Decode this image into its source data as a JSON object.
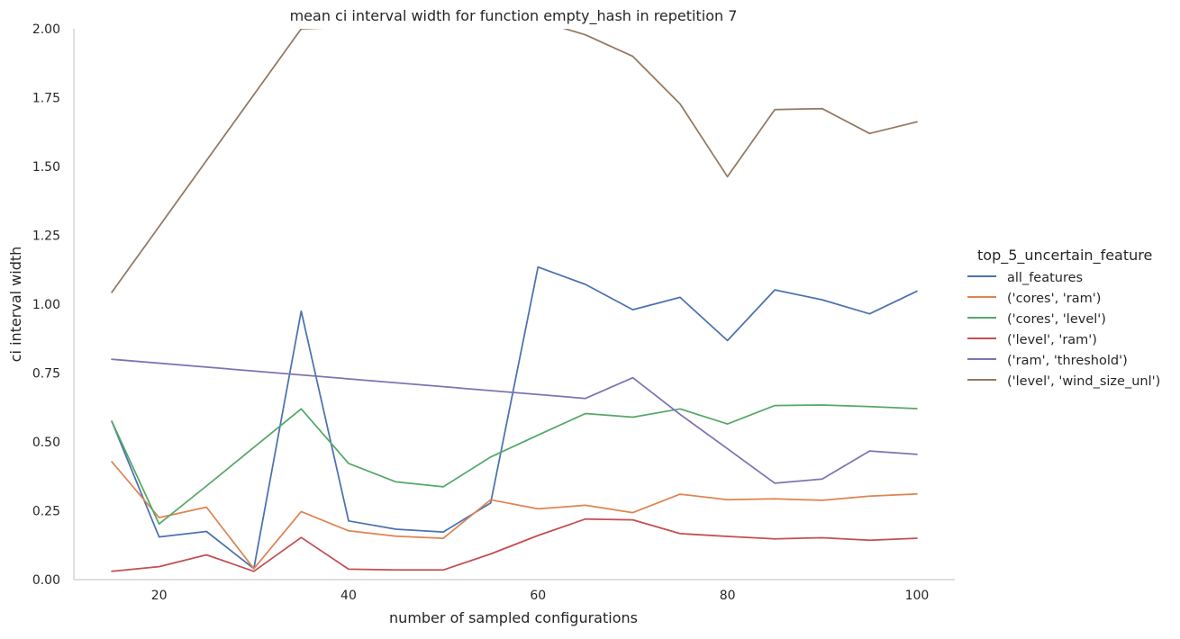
{
  "chart_data": {
    "type": "line",
    "title": "mean ci interval width for function empty_hash in repetition 7",
    "xlabel": "number of sampled configurations",
    "ylabel": "ci interval width",
    "xlim": [
      11,
      104
    ],
    "ylim": [
      0,
      2.0
    ],
    "x_ticks": [
      20,
      40,
      60,
      80,
      100
    ],
    "y_ticks": [
      0.0,
      0.25,
      0.5,
      0.75,
      1.0,
      1.25,
      1.5,
      1.75,
      2.0
    ],
    "x_tick_labels": [
      "20",
      "40",
      "60",
      "80",
      "100"
    ],
    "y_tick_labels": [
      "0.00",
      "0.25",
      "0.50",
      "0.75",
      "1.00",
      "1.25",
      "1.50",
      "1.75",
      "2.00"
    ],
    "grid": false,
    "legend_title": "top_5_uncertain_feature",
    "legend_position": "right",
    "series": [
      {
        "name": "all_features",
        "color": "#4c72b0",
        "x": [
          15,
          20,
          25,
          30,
          35,
          40,
          45,
          50,
          55,
          60,
          65,
          70,
          75,
          80,
          85,
          90,
          95,
          100
        ],
        "y": [
          0.575,
          0.155,
          0.175,
          0.04,
          0.975,
          0.213,
          0.183,
          0.173,
          0.278,
          1.135,
          1.072,
          0.98,
          1.025,
          0.868,
          1.052,
          1.016,
          0.965,
          1.047
        ]
      },
      {
        "name": "('cores', 'ram')",
        "color": "#dd8452",
        "x": [
          15,
          20,
          25,
          30,
          35,
          40,
          45,
          50,
          55,
          60,
          65,
          70,
          75,
          80,
          85,
          90,
          95,
          100
        ],
        "y": [
          0.428,
          0.225,
          0.263,
          0.04,
          0.247,
          0.177,
          0.158,
          0.15,
          0.29,
          0.257,
          0.27,
          0.243,
          0.31,
          0.29,
          0.293,
          0.288,
          0.303,
          0.311
        ]
      },
      {
        "name": "('cores', 'level')",
        "color": "#55a868",
        "x": [
          15,
          20,
          25,
          30,
          35,
          40,
          45,
          50,
          55,
          60,
          65,
          70,
          75,
          80,
          85,
          90,
          95,
          100
        ],
        "y": [
          0.575,
          0.202,
          0.34,
          0.48,
          0.62,
          0.422,
          0.355,
          0.337,
          0.445,
          0.525,
          0.603,
          0.59,
          0.62,
          0.565,
          0.632,
          0.634,
          0.628,
          0.621
        ]
      },
      {
        "name": "('level', 'ram')",
        "color": "#c44e52",
        "x": [
          15,
          20,
          25,
          30,
          35,
          40,
          45,
          50,
          55,
          60,
          65,
          70,
          75,
          80,
          85,
          90,
          95,
          100
        ],
        "y": [
          0.03,
          0.047,
          0.09,
          0.03,
          0.153,
          0.038,
          0.035,
          0.035,
          0.093,
          0.16,
          0.22,
          0.217,
          0.167,
          0.157,
          0.148,
          0.152,
          0.143,
          0.15
        ]
      },
      {
        "name": "('ram', 'threshold')",
        "color": "#8172b3",
        "x": [
          15,
          65,
          70,
          75,
          80,
          85,
          90,
          95,
          100
        ],
        "y": [
          0.8,
          0.658,
          0.733,
          0.6,
          0.475,
          0.35,
          0.365,
          0.467,
          0.455
        ]
      },
      {
        "name": "('level', 'wind_size_unl')",
        "color": "#937860",
        "x": [
          15,
          35,
          60,
          65,
          70,
          75,
          80,
          85,
          90,
          95,
          100
        ],
        "y": [
          1.043,
          2.0,
          2.03,
          1.978,
          1.9,
          1.727,
          1.463,
          1.707,
          1.71,
          1.62,
          1.662
        ]
      }
    ]
  }
}
